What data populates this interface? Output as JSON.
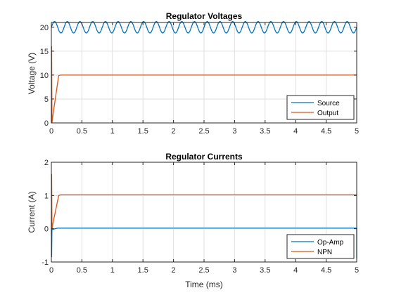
{
  "chart_data": [
    {
      "type": "line",
      "title": "Regulator Voltages",
      "xlabel": "",
      "ylabel": "Voltage (V)",
      "xlim": [
        0,
        5
      ],
      "ylim": [
        0,
        21
      ],
      "xticks": [
        "0",
        "0.5",
        "1",
        "1.5",
        "2",
        "2.5",
        "3",
        "3.5",
        "4",
        "4.5",
        "5"
      ],
      "yticks": [
        "0",
        "5",
        "10",
        "15",
        "20"
      ],
      "grid": true,
      "legend_position": "bottom-right",
      "series": [
        {
          "name": "Source",
          "color": "#0072BD",
          "waveform": {
            "kind": "sine",
            "offset": 20,
            "amplitude": 1.2,
            "cycles": 24
          },
          "x": [
            0,
            5
          ],
          "y": [
            20,
            20
          ]
        },
        {
          "name": "Output",
          "color": "#D95319",
          "x": [
            0,
            0.005,
            0.01,
            0.03,
            0.12,
            0.15,
            1,
            2,
            3,
            4,
            5
          ],
          "y": [
            0,
            16,
            0,
            2,
            9.9,
            10,
            10,
            10,
            10,
            10,
            10
          ]
        }
      ]
    },
    {
      "type": "line",
      "title": "Regulator Currents",
      "xlabel": "Time (ms)",
      "ylabel": "Current (A)",
      "xlim": [
        0,
        5
      ],
      "ylim": [
        -1,
        2
      ],
      "xticks": [
        "0",
        "0.5",
        "1",
        "1.5",
        "2",
        "2.5",
        "3",
        "3.5",
        "4",
        "4.5",
        "5"
      ],
      "yticks": [
        "-1",
        "0",
        "1",
        "2"
      ],
      "grid": true,
      "legend_position": "bottom-right",
      "series": [
        {
          "name": "Op-Amp",
          "color": "#0072BD",
          "x": [
            0,
            0.005,
            0.01,
            0.02,
            0.1,
            0.15,
            1,
            2,
            3,
            4,
            5
          ],
          "y": [
            0,
            -0.85,
            0.05,
            -0.02,
            0.02,
            0.02,
            0.02,
            0.02,
            0.02,
            0.02,
            0.02
          ],
          "end_tail": [
            5,
            -0.9
          ]
        },
        {
          "name": "NPN",
          "color": "#D95319",
          "x": [
            0,
            0.005,
            0.01,
            0.03,
            0.12,
            0.15,
            1,
            2,
            3,
            4,
            5
          ],
          "y": [
            0,
            1.65,
            0,
            0.2,
            1.0,
            1.02,
            1.02,
            1.02,
            1.02,
            1.02,
            1.02
          ]
        }
      ]
    }
  ]
}
